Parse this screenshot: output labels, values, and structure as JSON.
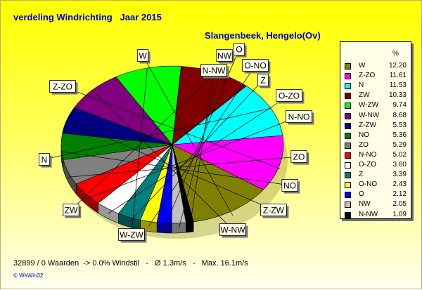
{
  "title": "verdeling Windrichting   Jaar 2015",
  "subtitle": "Slangenbeek, Hengelo(Ov)",
  "footer": "32899 / 0 Waarden  -> 0.0% Windstil   -   Ø 1.3m/s   -   Max. 16.1m/s",
  "brand": "© WsWin32",
  "legend_unit": "%",
  "chart_data": {
    "type": "pie",
    "three_d": true,
    "legend_position": "right",
    "categories": [
      "W",
      "Z-ZO",
      "N",
      "ZW",
      "W-ZW",
      "W-NW",
      "Z-ZW",
      "NO",
      "ZO",
      "N-NO",
      "O-ZO",
      "Z",
      "O-NO",
      "O",
      "NW",
      "N-NW"
    ],
    "values": [
      12.2,
      11.61,
      11.53,
      10.33,
      9.74,
      8.68,
      5.53,
      5.36,
      5.29,
      5.02,
      3.6,
      3.39,
      2.43,
      2.12,
      2.05,
      1.09
    ],
    "value_labels": [
      "12.20",
      "11.61",
      "11.53",
      "10.33",
      "9.74",
      "8.68",
      "5.53",
      "5.36",
      "5.29",
      "5.02",
      "3.60",
      "3.39",
      "2.43",
      "2.12",
      "2.05",
      "1.09"
    ],
    "colors": [
      "#808000",
      "#ff00ff",
      "#00ffff",
      "#800000",
      "#00ff00",
      "#800080",
      "#000080",
      "#008000",
      "#808080",
      "#ff0000",
      "#ffffff",
      "#008080",
      "#ffff00",
      "#0000ff",
      "#c0c0c0",
      "#000000"
    ],
    "callout_labels": [
      "W",
      "Z-ZO",
      "N",
      "ZW",
      "W-ZW",
      "W-NW",
      "Z-ZW",
      "NO",
      "ZO",
      "N-NO",
      "O-ZO",
      "Z",
      "O-NO",
      "O",
      "NW",
      "N-NW"
    ]
  }
}
